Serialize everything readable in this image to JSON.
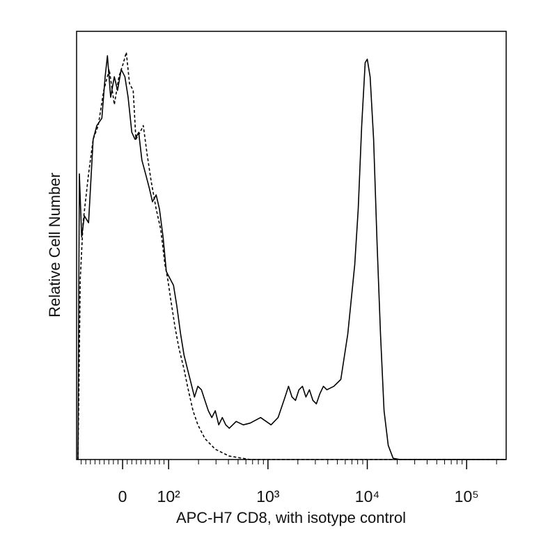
{
  "chart_data": {
    "type": "line",
    "x_label": "APC-H7 CD8, with isotype control",
    "y_label": "Relative Cell Number",
    "xscale": "biexponential",
    "xlim": [
      -100,
      250000
    ],
    "xticks": [
      0,
      {
        "value": 100,
        "label": "10²"
      },
      {
        "value": 1000,
        "label": "10³"
      },
      {
        "value": 10000,
        "label": "10⁴"
      },
      {
        "value": 100000,
        "label": "10⁵"
      }
    ],
    "xminorticks": [
      -90,
      -80,
      -70,
      -60,
      -50,
      -40,
      -30,
      -20,
      -10,
      10,
      20,
      30,
      40,
      50,
      60,
      70,
      80,
      90,
      200,
      300,
      400,
      500,
      600,
      700,
      800,
      900,
      2000,
      3000,
      4000,
      5000,
      6000,
      7000,
      8000,
      9000,
      20000,
      30000,
      40000,
      50000,
      60000,
      70000,
      80000,
      90000,
      200000
    ],
    "ylim": [
      0,
      100
    ],
    "series": [
      {
        "style": "solid",
        "color": "#000000",
        "x": [
          -97,
          -94,
          -89,
          -83,
          -74,
          -64,
          -56,
          -45,
          -38,
          -33,
          -26,
          -18,
          -11,
          -3,
          5,
          12,
          20,
          27,
          35,
          42,
          50,
          58,
          65,
          73,
          80,
          88,
          95,
          103,
          112,
          121,
          132,
          143,
          155,
          168,
          182,
          197,
          214,
          232,
          251,
          272,
          295,
          320,
          347,
          376,
          408,
          479,
          564,
          662,
          844,
          1075,
          1264,
          1486,
          1611,
          1747,
          1893,
          2053,
          2225,
          2413,
          2616,
          2836,
          3074,
          3333,
          3613,
          3917,
          4604,
          5413,
          6363,
          7478,
          8107,
          8788,
          9526,
          10000,
          10670,
          11570,
          12540,
          13590,
          14740,
          16240,
          18180,
          21370,
          250000
        ],
        "values": [
          0,
          66.7,
          52.0,
          56.9,
          55.3,
          74.8,
          78.0,
          79.7,
          89.4,
          94.3,
          84.6,
          89.4,
          86.2,
          91.1,
          89.4,
          84.6,
          76.4,
          74.8,
          76.4,
          69.9,
          66.7,
          63.4,
          60.2,
          61.8,
          58.5,
          52.0,
          43.9,
          42.3,
          40.7,
          35.8,
          29.3,
          24.4,
          21.1,
          17.9,
          14.6,
          17.1,
          16.3,
          13.8,
          11.4,
          9.8,
          11.4,
          8.1,
          9.8,
          8.1,
          7.3,
          8.9,
          8.1,
          8.5,
          9.8,
          8.1,
          9.8,
          14.6,
          17.1,
          14.6,
          13.8,
          16.3,
          17.1,
          14.6,
          16.3,
          13.8,
          13.0,
          15.4,
          17.1,
          16.3,
          17.1,
          18.7,
          29.3,
          45.5,
          58.5,
          78.0,
          92.7,
          93.5,
          89.4,
          74.8,
          50.4,
          29.3,
          11.4,
          3.3,
          0.3,
          0,
          0
        ]
      },
      {
        "style": "dashed",
        "color": "#000000",
        "x": [
          -97,
          -92,
          -86,
          -74,
          -64,
          -53,
          -41,
          -29,
          -18,
          -8,
          2,
          8,
          15,
          23,
          29,
          38,
          45,
          53,
          62,
          73,
          83,
          92,
          98,
          105,
          116,
          127,
          143,
          155,
          176,
          197,
          232,
          295,
          408,
          662,
          250000
        ],
        "values": [
          0,
          42.3,
          55.3,
          66.7,
          74.8,
          78.0,
          86.2,
          91.1,
          82.9,
          89.4,
          92.7,
          95.1,
          87.8,
          86.2,
          74.8,
          76.4,
          78.0,
          71.5,
          65.0,
          58.5,
          53.7,
          45.5,
          42.3,
          37.4,
          30.9,
          26.0,
          21.1,
          17.1,
          11.4,
          8.1,
          4.9,
          2.4,
          0.8,
          0,
          0
        ]
      }
    ]
  }
}
